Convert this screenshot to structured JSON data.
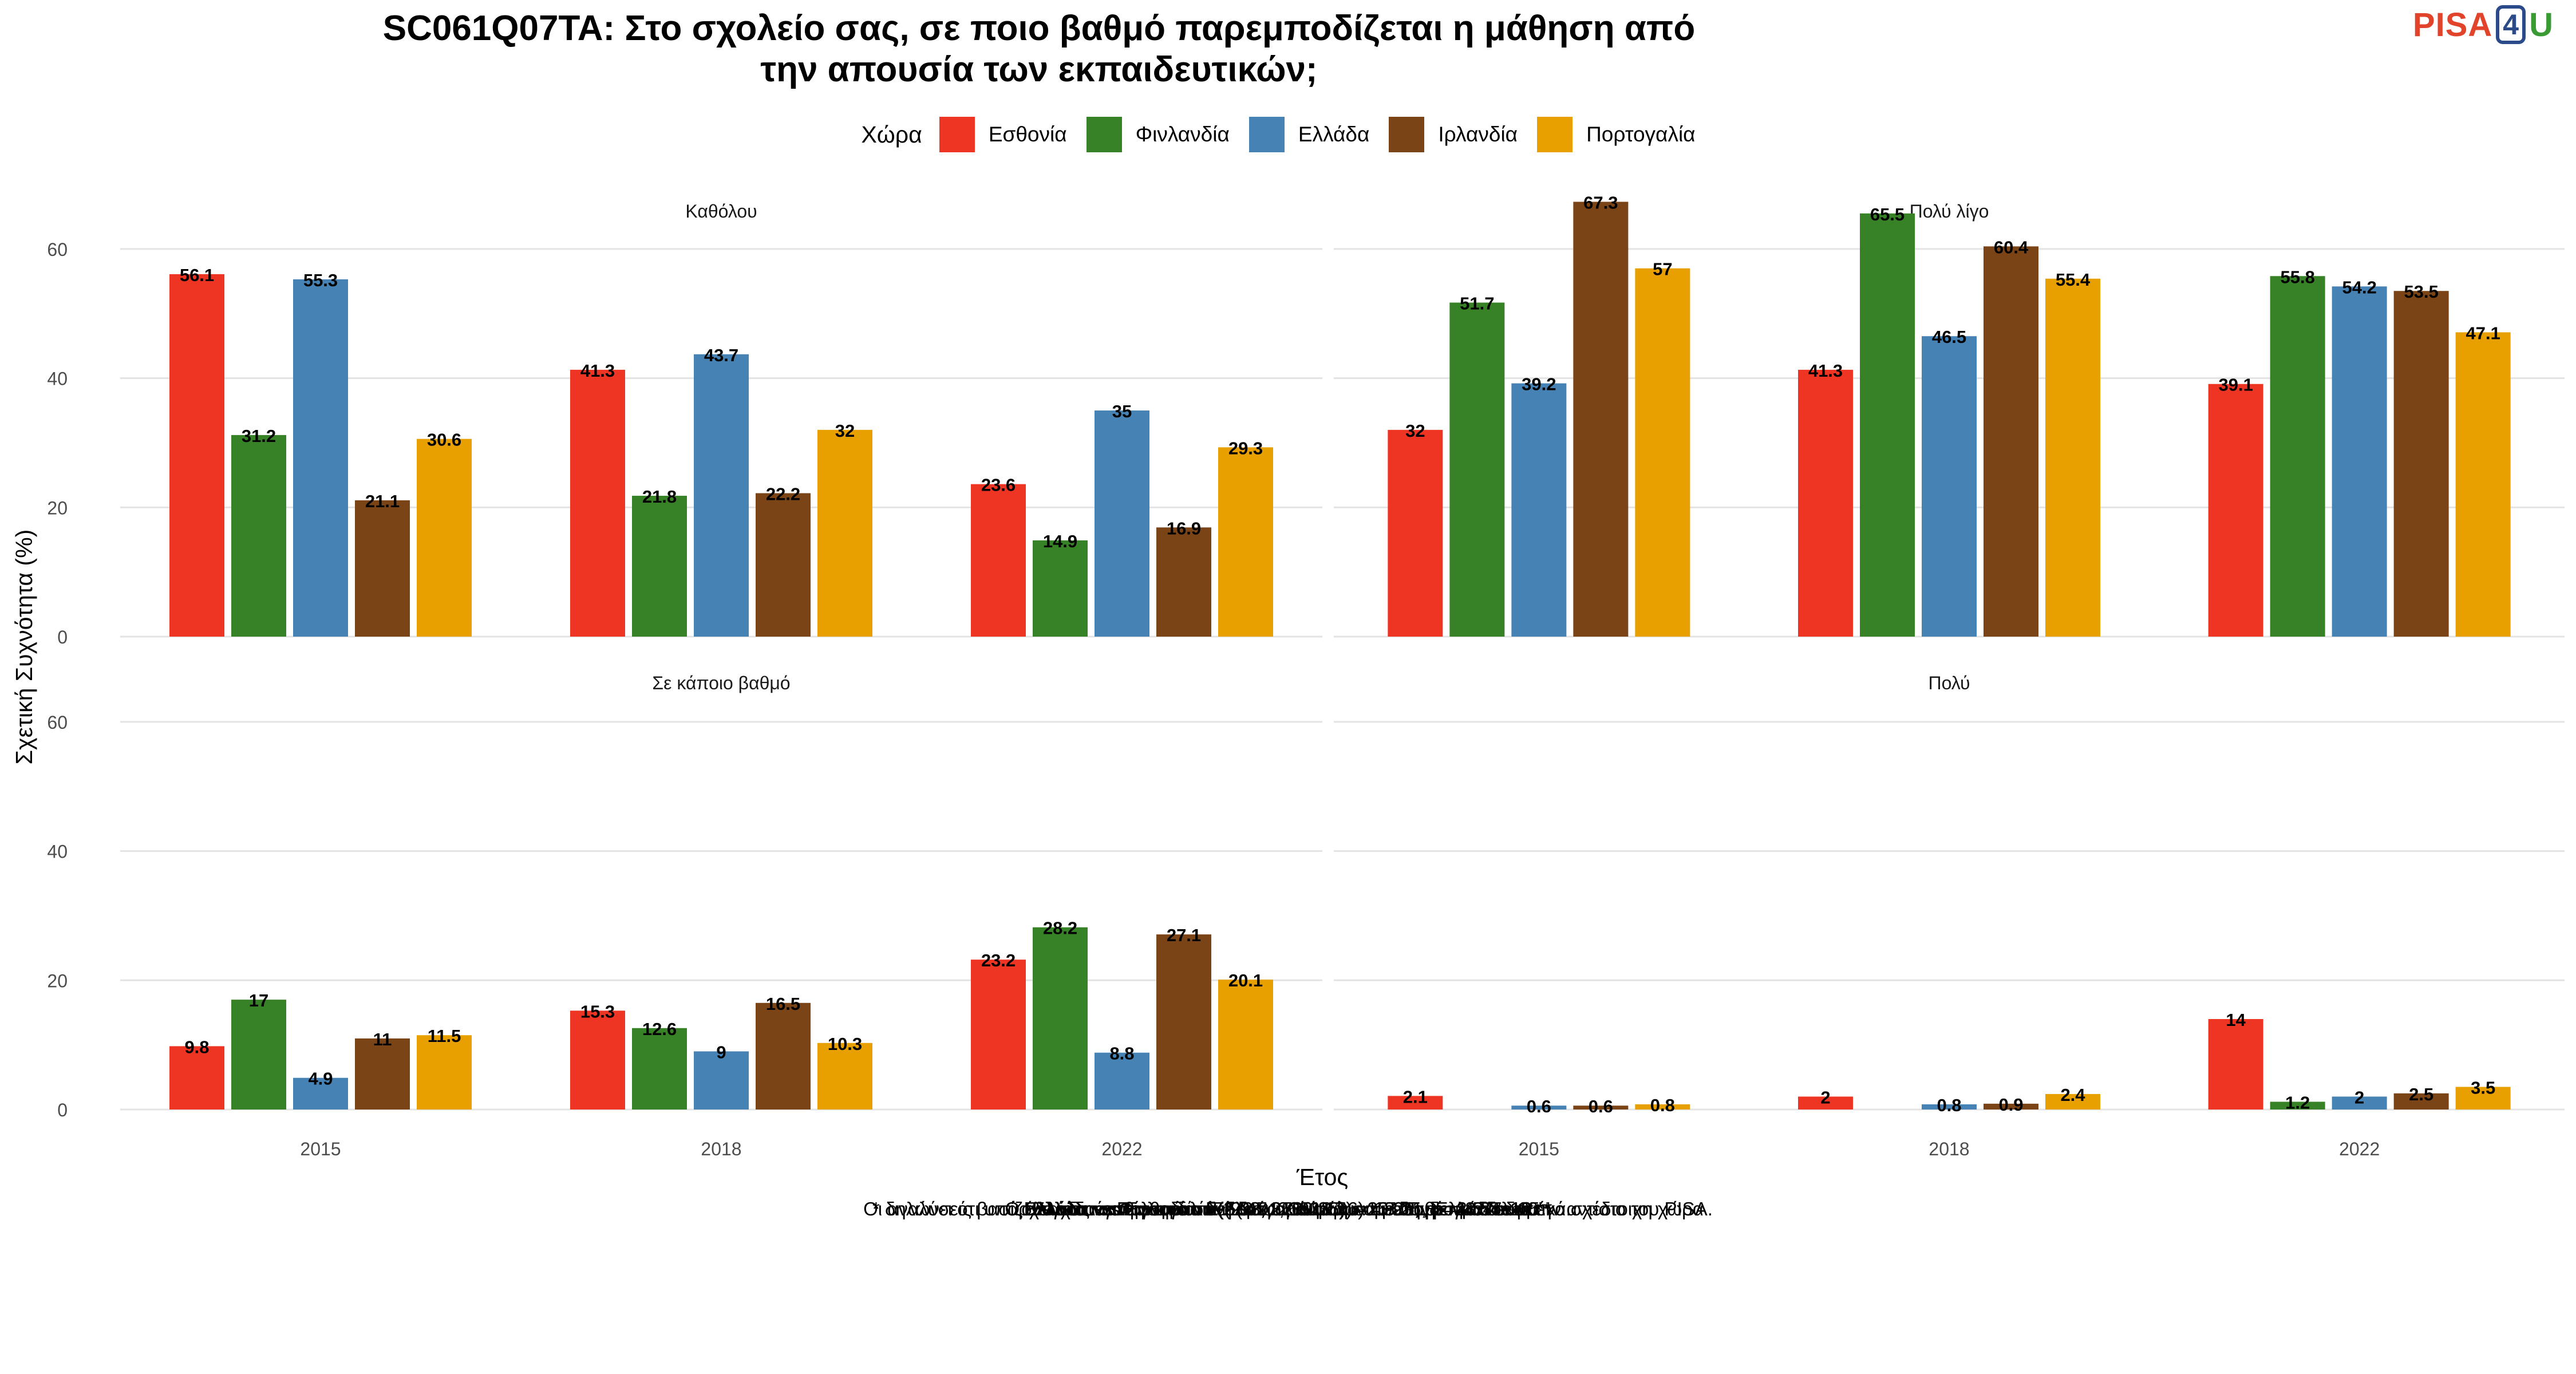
{
  "title_line1": "SC061Q07TA: Στο σχολείο σας, σε ποιο βαθμό παρεμποδίζεται η μάθηση από",
  "title_line2": "την απουσία των εκπαιδευτικών;",
  "logo": {
    "pisa": "PISA",
    "four": "4",
    "u": "U"
  },
  "legend": {
    "title": "Χώρα",
    "items": [
      {
        "label": "Εσθονία",
        "color": "#ee3524"
      },
      {
        "label": "Φινλανδία",
        "color": "#378126"
      },
      {
        "label": "Ελλάδα",
        "color": "#4682b4"
      },
      {
        "label": "Ιρλανδία",
        "color": "#7b4417"
      },
      {
        "label": "Πορτογαλία",
        "color": "#e8a000"
      }
    ]
  },
  "footnotes": [
    "Ελλάδα vs Εσθονία: F(2.98, 3100.26) = 15.25, p = 8.54e-10 *",
    "Ελλάδα vs Φινλανδία: F(2.47, 2692.17) = 18.25, p = 4.64e-10 *",
    "Ελλάδα vs Ιρλανδία: F(2.92, 2789.35) = 20.06, p = 1.37e-12 *",
    "Ελλάδα vs Πορτογαλία: F(2.91, 3518.96) = 7.31, p = 8.57e-05 *",
    "Ο έλεγχος έγινε για το σύνολο των κυμάτων με διαθέσιμα δεδομένα.",
    "* δηλώνει ότι υπάρχει στατιστικά σημαντική διαφορά ανάμεσα στην Ελλάδα και την αντίστοιχη χώρα",
    "Οι αναλύσεις βασίζονται σε σταθμισμένα δεδομένα, σύμφωνα με το δειγματοληπτικό σχέδιο του PISA."
  ],
  "chart_data": {
    "type": "bar",
    "xlabel": "Έτος",
    "ylabel": "Σχετική Συχνότητα (%)",
    "ylim": [
      0,
      70
    ],
    "yticks": [
      0,
      20,
      40,
      60
    ],
    "grid": true,
    "legend_position": "top",
    "categories": [
      "2015",
      "2018",
      "2022"
    ],
    "panels": [
      {
        "name": "Καθόλου",
        "series": [
          {
            "name": "Εσθονία",
            "values": [
              56.1,
              41.3,
              23.6
            ]
          },
          {
            "name": "Φινλανδία",
            "values": [
              31.2,
              21.8,
              14.9
            ]
          },
          {
            "name": "Ελλάδα",
            "values": [
              55.3,
              43.7,
              35
            ]
          },
          {
            "name": "Ιρλανδία",
            "values": [
              21.1,
              22.2,
              16.9
            ]
          },
          {
            "name": "Πορτογαλία",
            "values": [
              30.6,
              32,
              29.3
            ]
          }
        ]
      },
      {
        "name": "Πολύ λίγο",
        "series": [
          {
            "name": "Εσθονία",
            "values": [
              32,
              41.3,
              39.1
            ]
          },
          {
            "name": "Φινλανδία",
            "values": [
              51.7,
              65.5,
              55.8
            ]
          },
          {
            "name": "Ελλάδα",
            "values": [
              39.2,
              46.5,
              54.2
            ]
          },
          {
            "name": "Ιρλανδία",
            "values": [
              67.3,
              60.4,
              53.5
            ]
          },
          {
            "name": "Πορτογαλία",
            "values": [
              57,
              55.4,
              47.1
            ]
          }
        ]
      },
      {
        "name": "Σε κάποιο βαθμό",
        "series": [
          {
            "name": "Εσθονία",
            "values": [
              9.8,
              15.3,
              23.2
            ]
          },
          {
            "name": "Φινλανδία",
            "values": [
              17,
              12.6,
              28.2
            ]
          },
          {
            "name": "Ελλάδα",
            "values": [
              4.9,
              9,
              8.8
            ]
          },
          {
            "name": "Ιρλανδία",
            "values": [
              11,
              16.5,
              27.1
            ]
          },
          {
            "name": "Πορτογαλία",
            "values": [
              11.5,
              10.3,
              20.1
            ]
          }
        ]
      },
      {
        "name": "Πολύ",
        "series": [
          {
            "name": "Εσθονία",
            "values": [
              2.1,
              2,
              14
            ]
          },
          {
            "name": "Φινλανδία",
            "values": [
              null,
              null,
              1.2
            ]
          },
          {
            "name": "Ελλάδα",
            "values": [
              0.6,
              0.8,
              2
            ]
          },
          {
            "name": "Ιρλανδία",
            "values": [
              0.6,
              0.9,
              2.5
            ]
          },
          {
            "name": "Πορτογαλία",
            "values": [
              0.8,
              2.4,
              3.5
            ]
          }
        ]
      }
    ]
  }
}
